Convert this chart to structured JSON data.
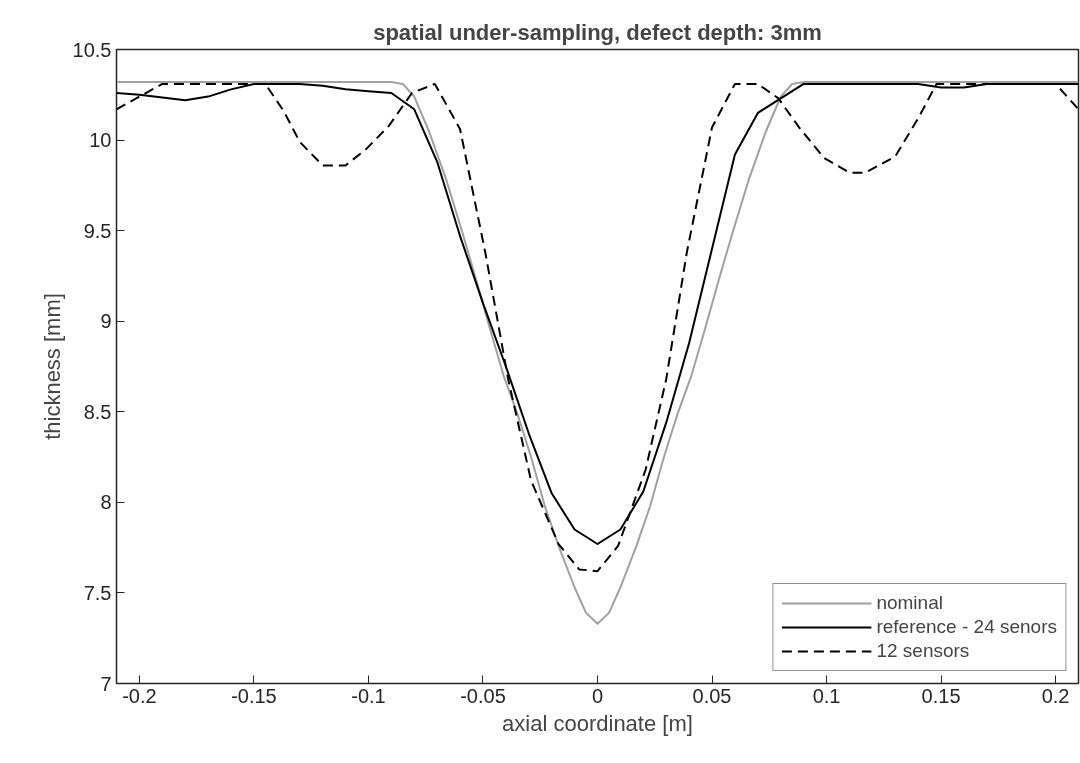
{
  "chart_data": {
    "type": "line",
    "title": "spatial under-sampling, defect depth: 3mm",
    "xlabel": "axial coordinate [m]",
    "ylabel": "thickness [mm]",
    "xlim": [
      -0.21,
      0.21
    ],
    "ylim": [
      7,
      10.5
    ],
    "xticks": [
      -0.2,
      -0.15,
      -0.1,
      -0.05,
      0,
      0.05,
      0.1,
      0.15,
      0.2
    ],
    "yticks": [
      7,
      7.5,
      8,
      8.5,
      9,
      9.5,
      10,
      10.5
    ],
    "grid": false,
    "legend": "bottom right",
    "series": [
      {
        "name": "nominal",
        "color": "#a0a0a0",
        "line_style": "solid",
        "x": [
          -0.21,
          -0.09,
          -0.085,
          -0.08,
          -0.0736,
          -0.066,
          -0.059,
          -0.053,
          -0.047,
          -0.041,
          -0.035,
          -0.029,
          -0.023,
          -0.017,
          -0.01,
          -0.005,
          0,
          0.005,
          0.01,
          0.017,
          0.023,
          0.029,
          0.035,
          0.041,
          0.047,
          0.053,
          0.059,
          0.066,
          0.0736,
          0.08,
          0.085,
          0.09,
          0.21
        ],
        "values": [
          10.32,
          10.32,
          10.31,
          10.24,
          10.05,
          9.78,
          9.49,
          9.23,
          8.96,
          8.7,
          8.49,
          8.25,
          7.98,
          7.76,
          7.53,
          7.39,
          7.33,
          7.39,
          7.53,
          7.76,
          7.98,
          8.25,
          8.49,
          8.7,
          8.96,
          9.23,
          9.49,
          9.78,
          10.05,
          10.24,
          10.31,
          10.32,
          10.32
        ]
      },
      {
        "name": "reference - 24 senors",
        "color": "#000000",
        "line_style": "solid",
        "x": [
          -0.21,
          -0.2,
          -0.18,
          -0.17,
          -0.16,
          -0.15,
          -0.14,
          -0.13,
          -0.12,
          -0.11,
          -0.1,
          -0.09,
          -0.08,
          -0.07,
          -0.06,
          -0.05,
          -0.04,
          -0.03,
          -0.02,
          -0.01,
          0,
          0.01,
          0.02,
          0.03,
          0.04,
          0.05,
          0.06,
          0.07,
          0.08,
          0.09,
          0.1,
          0.11,
          0.12,
          0.13,
          0.14,
          0.15,
          0.16,
          0.17,
          0.18,
          0.19,
          0.2,
          0.21
        ],
        "values": [
          10.26,
          10.25,
          10.22,
          10.24,
          10.28,
          10.31,
          10.31,
          10.31,
          10.3,
          10.28,
          10.27,
          10.26,
          10.17,
          9.88,
          9.47,
          9.1,
          8.75,
          8.38,
          8.05,
          7.85,
          7.77,
          7.85,
          8.06,
          8.44,
          8.88,
          9.4,
          9.92,
          10.15,
          10.23,
          10.31,
          10.31,
          10.31,
          10.31,
          10.31,
          10.31,
          10.29,
          10.29,
          10.31,
          10.31,
          10.31,
          10.31,
          10.31
        ]
      },
      {
        "name": "12 sensors",
        "color": "#000000",
        "line_style": "dashed",
        "x": [
          -0.21,
          -0.19,
          -0.145,
          -0.137,
          -0.13,
          -0.12,
          -0.11,
          -0.101,
          -0.091,
          -0.081,
          -0.071,
          -0.06,
          -0.049,
          -0.039,
          -0.029,
          -0.017,
          -0.008,
          0,
          0.009,
          0.021,
          0.03,
          0.039,
          0.05,
          0.06,
          0.07,
          0.079,
          0.088,
          0.099,
          0.11,
          0.117,
          0.13,
          0.14,
          0.148,
          0.2,
          0.21
        ],
        "values": [
          10.17,
          10.31,
          10.31,
          10.16,
          9.99,
          9.86,
          9.86,
          9.95,
          10.08,
          10.26,
          10.31,
          10.06,
          9.38,
          8.68,
          8.12,
          7.77,
          7.63,
          7.62,
          7.76,
          8.18,
          8.68,
          9.38,
          10.07,
          10.31,
          10.31,
          10.23,
          10.07,
          9.9,
          9.82,
          9.82,
          9.91,
          10.12,
          10.31,
          10.31,
          10.17
        ]
      }
    ]
  }
}
